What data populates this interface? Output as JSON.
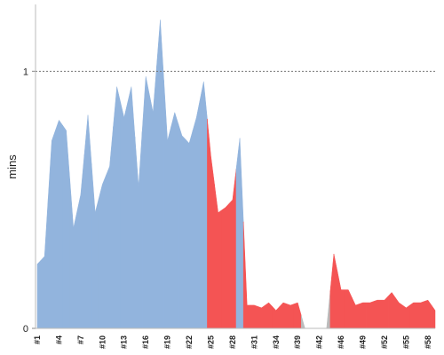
{
  "chart_data": {
    "type": "area",
    "y_label": "mins",
    "categories": [
      "#1",
      null,
      null,
      "#4",
      null,
      null,
      "#7",
      null,
      null,
      "#10",
      null,
      null,
      "#13",
      null,
      null,
      "#16",
      null,
      null,
      "#19",
      null,
      null,
      "#22",
      null,
      null,
      "#25",
      null,
      null,
      "#28",
      null,
      null,
      "#31",
      null,
      null,
      "#34",
      null,
      null,
      "#39",
      null,
      null,
      "#42",
      null,
      null,
      "#46",
      null,
      null,
      "#49",
      null,
      null,
      "#52",
      null,
      null,
      "#55",
      null,
      null,
      "#58",
      null
    ],
    "values": [
      0.25,
      0.28,
      0.73,
      0.81,
      0.77,
      0.39,
      0.52,
      0.83,
      0.45,
      0.56,
      0.63,
      0.94,
      0.82,
      0.94,
      0.55,
      0.98,
      0.84,
      1.2,
      0.73,
      0.84,
      0.75,
      0.72,
      0.82,
      0.96,
      0.67,
      0.45,
      0.47,
      0.5,
      0.74,
      0.09,
      0.09,
      0.08,
      0.1,
      0.07,
      0.1,
      0.09,
      0.1,
      0,
      0,
      0,
      0,
      0.29,
      0.15,
      0.15,
      0.09,
      0.1,
      0.1,
      0.11,
      0.11,
      0.14,
      0.1,
      0.08,
      0.1,
      0.1,
      0.11,
      0.07
    ],
    "colors": [
      "#92b4dd",
      "#92b4dd",
      "#92b4dd",
      "#92b4dd",
      "#92b4dd",
      "#92b4dd",
      "#92b4dd",
      "#92b4dd",
      "#92b4dd",
      "#92b4dd",
      "#92b4dd",
      "#92b4dd",
      "#92b4dd",
      "#92b4dd",
      "#92b4dd",
      "#92b4dd",
      "#92b4dd",
      "#92b4dd",
      "#92b4dd",
      "#92b4dd",
      "#92b4dd",
      "#92b4dd",
      "#92b4dd",
      "#92b4dd",
      "#f45454",
      "#f45454",
      "#f45454",
      "#f45454",
      "#92b4dd",
      "#f45454",
      "#f45454",
      "#f45454",
      "#f45454",
      "#f45454",
      "#f45454",
      "#f45454",
      "#f45454",
      "#bbbbbb",
      "#bbbbbb",
      "#bbbbbb",
      "#bbbbbb",
      "#f45454",
      "#f45454",
      "#f45454",
      "#f45454",
      "#f45454",
      "#f45454",
      "#f45454",
      "#f45454",
      "#f45454",
      "#f45454",
      "#f45454",
      "#f45454",
      "#f45454",
      "#f45454",
      "#f45454"
    ],
    "ylim": [
      0,
      1.26
    ],
    "yticks": [
      0,
      1
    ],
    "grid": true
  }
}
